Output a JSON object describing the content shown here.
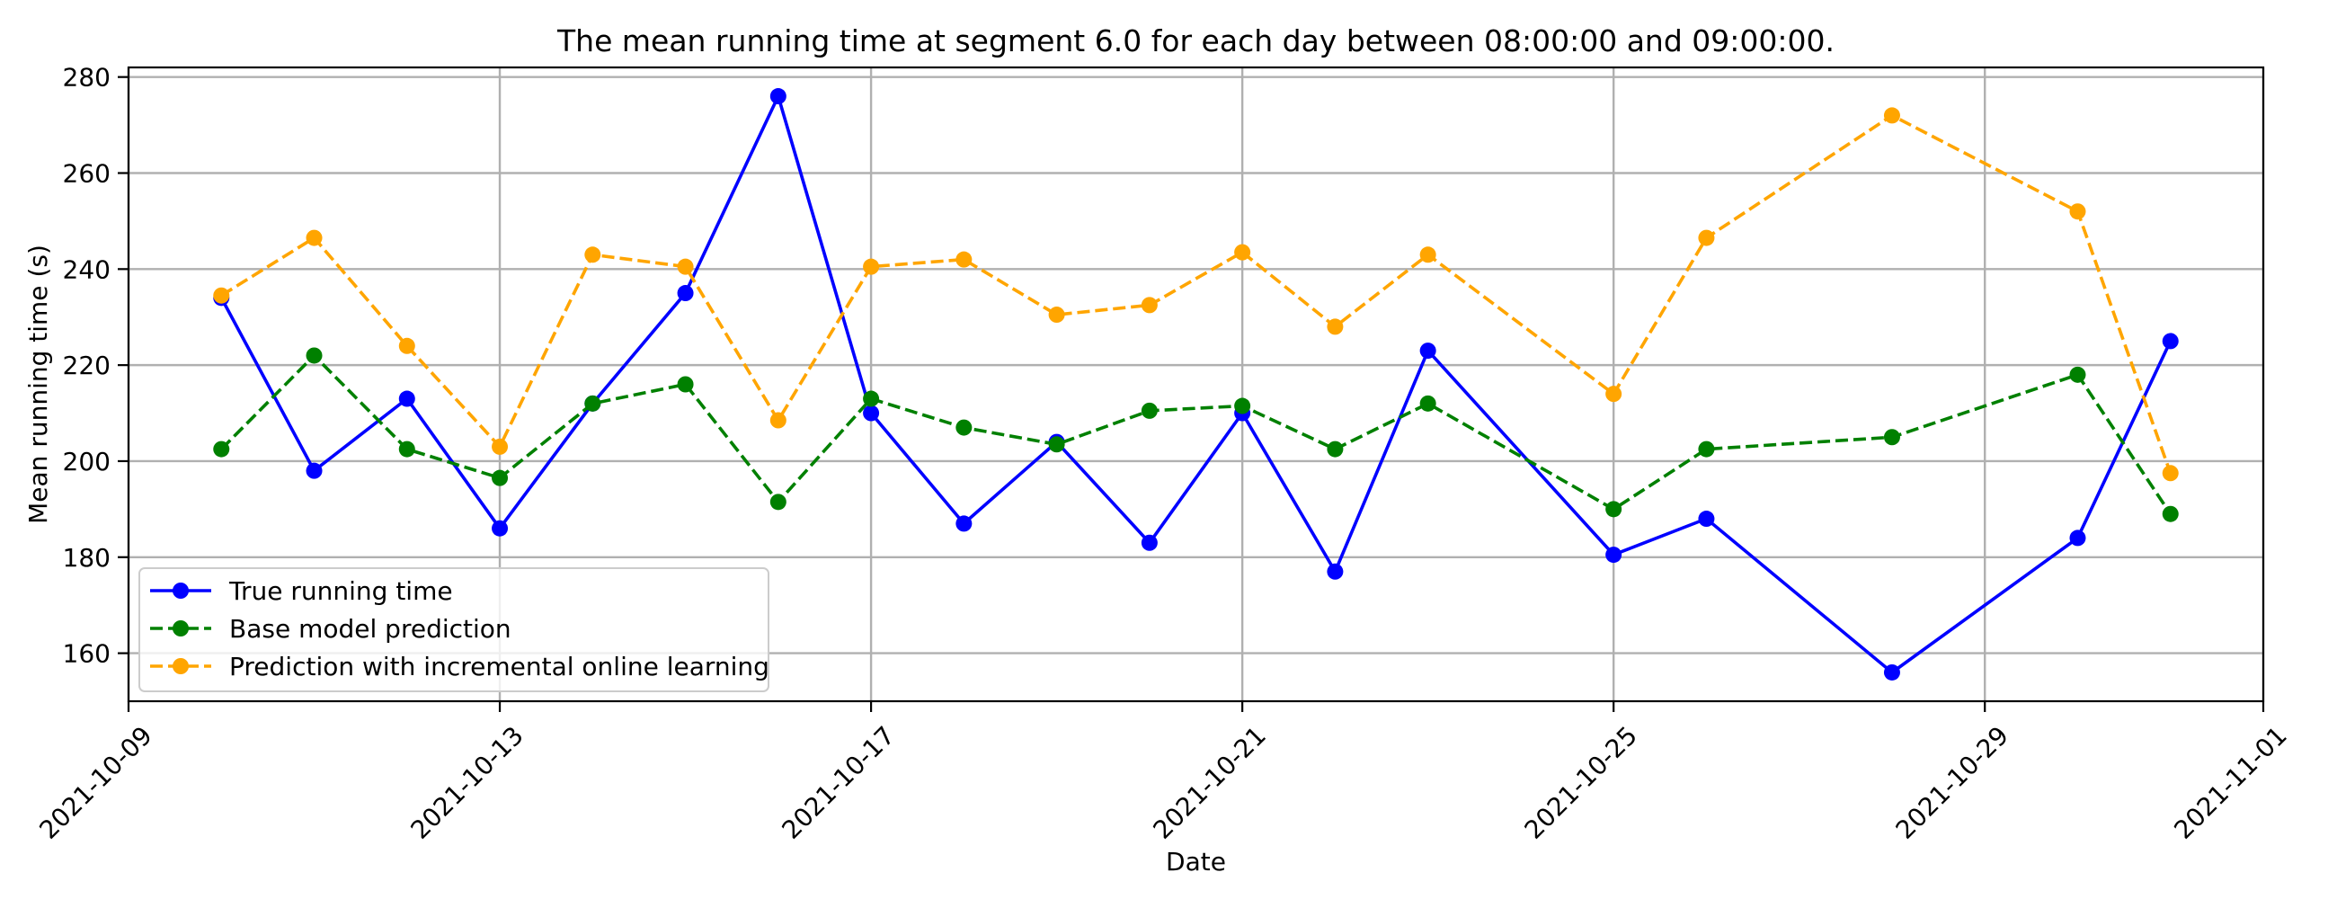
{
  "chart_data": {
    "type": "line",
    "title": "The mean running time at segment 6.0 for each day between 08:00:00 and 09:00:00.",
    "xlabel": "Date",
    "ylabel": "Mean running time (s)",
    "x": [
      "2021-10-10",
      "2021-10-11",
      "2021-10-12",
      "2021-10-13",
      "2021-10-14",
      "2021-10-15",
      "2021-10-16",
      "2021-10-17",
      "2021-10-18",
      "2021-10-19",
      "2021-10-20",
      "2021-10-21",
      "2021-10-22",
      "2021-10-23",
      "2021-10-25",
      "2021-10-26",
      "2021-10-28",
      "2021-10-30",
      "2021-10-31"
    ],
    "xlim": [
      "2021-10-09",
      "2021-11-01"
    ],
    "ylim": [
      150,
      282
    ],
    "x_ticks": [
      "2021-10-09",
      "2021-10-13",
      "2021-10-17",
      "2021-10-21",
      "2021-10-25",
      "2021-10-29",
      "2021-11-01"
    ],
    "y_ticks": [
      160,
      180,
      200,
      220,
      240,
      260,
      280
    ],
    "grid": true,
    "legend_position": "lower-left",
    "series": [
      {
        "name": "True running time",
        "color": "#0000ff",
        "line_style": "solid",
        "values": [
          234,
          198,
          213,
          186,
          212,
          235,
          276,
          210,
          187,
          204,
          183,
          210,
          177,
          223,
          180.5,
          188,
          156,
          184,
          225
        ]
      },
      {
        "name": "Base model prediction",
        "color": "#008000",
        "line_style": "dashed",
        "values": [
          202.5,
          222,
          202.5,
          196.5,
          212,
          216,
          191.5,
          213,
          207,
          203.5,
          210.5,
          211.5,
          202.5,
          212,
          190,
          202.5,
          205,
          218,
          189
        ]
      },
      {
        "name": "Prediction with incremental online learning",
        "color": "#ffa500",
        "line_style": "dashed",
        "values": [
          234.5,
          246.5,
          224,
          203,
          243,
          240.5,
          208.5,
          240.5,
          242,
          230.5,
          232.5,
          243.5,
          228,
          243,
          214,
          246.5,
          272,
          252,
          197.5
        ]
      }
    ]
  }
}
